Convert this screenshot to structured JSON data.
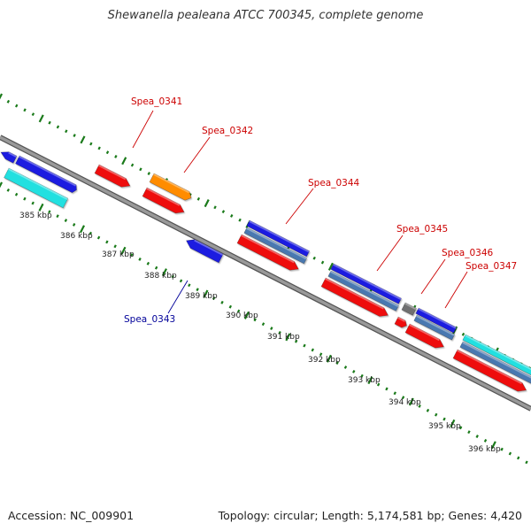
{
  "title": "Shewanella pealeana ATCC 700345, complete genome",
  "footer": {
    "accession": "Accession: NC_009901",
    "summary": "Topology: circular; Length: 5,174,581 bp; Genes: 4,420"
  },
  "colors": {
    "background": "#ffffff",
    "backbone": "#888888",
    "gc_ticks": "#1a7a1a",
    "gene_red": "#ee1111",
    "gene_blue": "#1a1ae0",
    "gene_orange": "#ff8c00",
    "gene_cyan": "#22e0e0",
    "gene_steel": "#4a78b0",
    "gene_gray": "#707070",
    "label_forward": "#cc0000",
    "label_reverse": "#000099"
  },
  "ruler": {
    "labels": [
      "385 kbp",
      "386 kbp",
      "387 kbp",
      "388 kbp",
      "389 kbp",
      "390 kbp",
      "391 kbp",
      "392 kbp",
      "393 kbp",
      "394 kbp",
      "395 kbp",
      "396 kbp"
    ]
  },
  "genes": [
    {
      "label": "Spea_0341",
      "strand": "forward",
      "color": "red"
    },
    {
      "label": "Spea_0342",
      "strand": "forward",
      "color": "orange"
    },
    {
      "label": "Spea_0343",
      "strand": "reverse",
      "color": "blue"
    },
    {
      "label": "Spea_0344",
      "strand": "forward",
      "color": "blue"
    },
    {
      "label": "Spea_0345",
      "strand": "forward",
      "color": "blue"
    },
    {
      "label": "Spea_0346",
      "strand": "forward",
      "color": "gray"
    },
    {
      "label": "Spea_0347",
      "strand": "forward",
      "color": "blue"
    }
  ]
}
